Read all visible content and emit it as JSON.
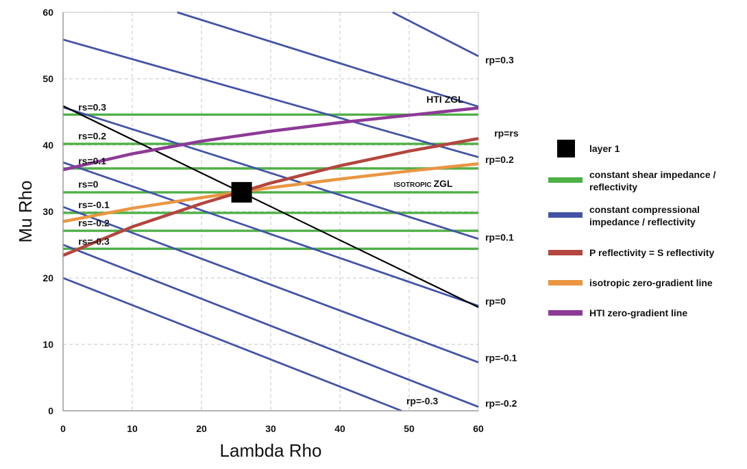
{
  "chart_data": {
    "type": "line",
    "xlabel": "Lambda Rho",
    "ylabel": "Mu Rho",
    "xlim": [
      0,
      60
    ],
    "ylim": [
      0,
      60
    ],
    "x_ticks": [
      0,
      10,
      20,
      30,
      40,
      50,
      60
    ],
    "y_ticks": [
      0,
      10,
      20,
      30,
      40,
      50,
      60
    ],
    "grid": true,
    "legend_position": "right",
    "colors": {
      "shear": "#4eb045",
      "compressional": "#4253a5",
      "p_eq_s": "#b3463f",
      "isotropic": "#ea9642",
      "hti": "#8d3a96",
      "reference": "#000000",
      "marker": "#000000"
    },
    "legend": [
      {
        "key": "layer1",
        "label": "layer 1",
        "kind": "marker"
      },
      {
        "key": "shear",
        "label": "constant shear impedance / reflectivity",
        "kind": "line"
      },
      {
        "key": "compressional",
        "label": "constant compressional impedance / reflectivity",
        "kind": "line"
      },
      {
        "key": "p_eq_s",
        "label": "P reflectivity = S reflectivity",
        "kind": "line"
      },
      {
        "key": "isotropic",
        "label": "isotropic zero-gradient line",
        "kind": "line"
      },
      {
        "key": "hti",
        "label": "HTI zero-gradient line",
        "kind": "line"
      }
    ],
    "layer1_point": {
      "x": 25.8,
      "y": 32.9
    },
    "series": [
      {
        "name": "rs=0.3",
        "group": "shear",
        "x": [
          0,
          60
        ],
        "y": [
          44.6,
          44.6
        ]
      },
      {
        "name": "rs=0.2",
        "group": "shear",
        "x": [
          0,
          60
        ],
        "y": [
          40.2,
          40.2
        ]
      },
      {
        "name": "rs=0.1",
        "group": "shear",
        "x": [
          0,
          60
        ],
        "y": [
          36.5,
          36.5
        ]
      },
      {
        "name": "rs=0",
        "group": "shear",
        "x": [
          0,
          60
        ],
        "y": [
          32.9,
          32.9
        ]
      },
      {
        "name": "rs=-0.1",
        "group": "shear",
        "x": [
          0,
          60
        ],
        "y": [
          29.8,
          29.8
        ]
      },
      {
        "name": "rs=-0.2",
        "group": "shear",
        "x": [
          0,
          60
        ],
        "y": [
          27.1,
          27.1
        ]
      },
      {
        "name": "rs=-0.3",
        "group": "shear",
        "x": [
          0,
          60
        ],
        "y": [
          24.4,
          24.4
        ]
      },
      {
        "name": "rp=0.3",
        "group": "compressional",
        "x": [
          47.6,
          60
        ],
        "y": [
          60,
          53.4
        ]
      },
      {
        "name": "rp=0.2",
        "group": "compressional",
        "x": [
          0,
          60
        ],
        "y": [
          55.9,
          38.2
        ]
      },
      {
        "name": "rp=0.1",
        "group": "compressional",
        "x": [
          0,
          60
        ],
        "y": [
          45.7,
          25.9
        ]
      },
      {
        "name": "rp=0",
        "group": "compressional",
        "x": [
          0,
          60
        ],
        "y": [
          37.4,
          15.8
        ]
      },
      {
        "name": "rp=-0.1",
        "group": "compressional",
        "x": [
          0,
          60
        ],
        "y": [
          30.7,
          7.3
        ]
      },
      {
        "name": "rp=-0.2",
        "group": "compressional",
        "x": [
          0,
          60
        ],
        "y": [
          25.0,
          0.6
        ]
      },
      {
        "name": "rp=-0.3",
        "group": "compressional",
        "x": [
          0,
          48.9
        ],
        "y": [
          20.0,
          0
        ]
      },
      {
        "name": "rp=0.4 (partial)",
        "group": "compressional",
        "x": [
          16.5,
          60
        ],
        "y": [
          60,
          45.8
        ]
      },
      {
        "name": "layer 1 constant-impedance line",
        "group": "reference",
        "x": [
          0,
          60
        ],
        "y": [
          45.9,
          15.6
        ]
      },
      {
        "name": "rp=rs",
        "group": "p_eq_s",
        "x": [
          0,
          10,
          20,
          30,
          40,
          50,
          60
        ],
        "y": [
          23.4,
          27.7,
          31.2,
          34.3,
          36.9,
          39.1,
          41.0
        ]
      },
      {
        "name": "ISOTROPIC ZGL",
        "group": "isotropic",
        "x": [
          0,
          10,
          20,
          30,
          40,
          50,
          60
        ],
        "y": [
          28.5,
          30.5,
          32.1,
          33.6,
          34.9,
          36.1,
          37.2
        ]
      },
      {
        "name": "HTI ZGL",
        "group": "hti",
        "x": [
          0,
          10,
          20,
          30,
          40,
          50,
          60
        ],
        "y": [
          36.3,
          38.7,
          40.6,
          42.1,
          43.4,
          44.5,
          45.6
        ]
      }
    ],
    "annotations": [
      {
        "text": "rs=0.3",
        "x": 2.2,
        "y": 45.2
      },
      {
        "text": "rs=0.2",
        "x": 2.2,
        "y": 40.9
      },
      {
        "text": "rs=0.1",
        "x": 2.2,
        "y": 37.1
      },
      {
        "text": "rs=0",
        "x": 2.2,
        "y": 33.6
      },
      {
        "text": "rs=-0.1",
        "x": 2.2,
        "y": 30.5
      },
      {
        "text": "rs=-0.2",
        "x": 2.2,
        "y": 27.8
      },
      {
        "text": "rs=-0.3",
        "x": 2.2,
        "y": 25.0
      },
      {
        "text": "HTI ZGL",
        "x": 52.5,
        "y": 46.4
      },
      {
        "text": "ISOTROPIC ZGL",
        "x": 47.8,
        "y": 33.7
      },
      {
        "text": "rp=0.3",
        "x": 61.0,
        "y": 52.3
      },
      {
        "text": "rp=rs",
        "x": 62.3,
        "y": 41.3
      },
      {
        "text": "rp=0.2",
        "x": 61.0,
        "y": 37.3
      },
      {
        "text": "rp=0.1",
        "x": 61.0,
        "y": 25.6
      },
      {
        "text": "rp=0",
        "x": 61.0,
        "y": 16.0
      },
      {
        "text": "rp=-0.1",
        "x": 61.0,
        "y": 7.5
      },
      {
        "text": "rp=-0.2",
        "x": 61.0,
        "y": 0.6
      },
      {
        "text": "rp=-0.3",
        "x": 49.6,
        "y": 1.0
      }
    ]
  }
}
